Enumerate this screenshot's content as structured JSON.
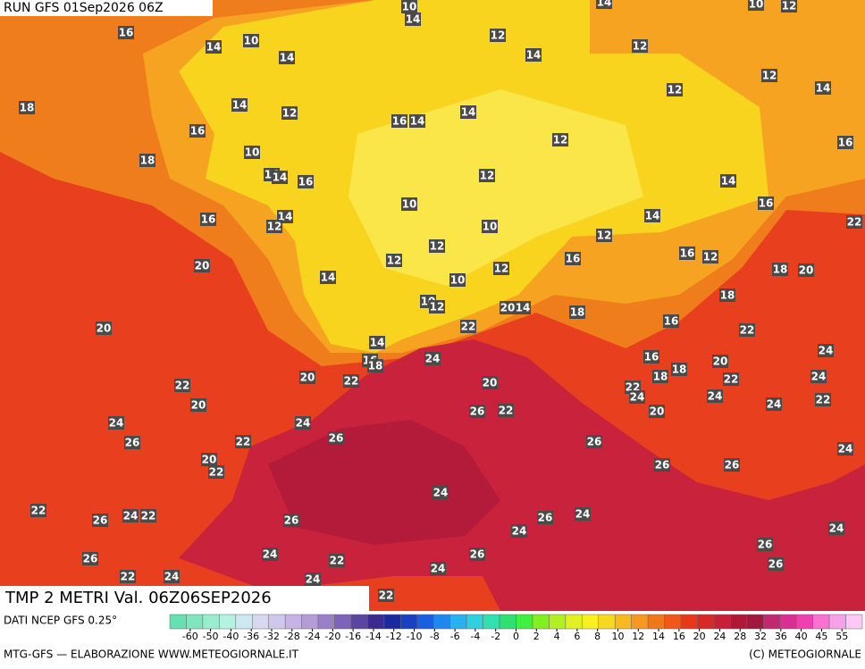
{
  "header": {
    "run": "RUN GFS 01Sep2026 06Z",
    "title": "TMP 2 METRI Val. 06Z06SEP2026"
  },
  "footer": {
    "source": "DATI NCEP GFS 0.25°",
    "credit": "MTG-GFS — ELABORAZIONE WWW.METEOGIORNALE.IT",
    "copyright": "(C) METEOGIORNALE"
  },
  "colorbar": {
    "ticks": [
      -60,
      -50,
      -40,
      -36,
      -32,
      -28,
      -24,
      -20,
      -16,
      -14,
      -12,
      -10,
      -8,
      -6,
      -4,
      -2,
      0,
      2,
      4,
      6,
      8,
      10,
      12,
      14,
      16,
      20,
      24,
      28,
      32,
      36,
      40,
      45,
      55
    ]
  },
  "map_labels": [
    10,
    14,
    14,
    10,
    12,
    16,
    14,
    10,
    12,
    14,
    12,
    14,
    12,
    12,
    14,
    18,
    14,
    12,
    16,
    14,
    14,
    16,
    12,
    16,
    18,
    10,
    14,
    14,
    16,
    12,
    14,
    16,
    10,
    14,
    16,
    12,
    10,
    14,
    22,
    12,
    12,
    16,
    12,
    12,
    20,
    16,
    12,
    18,
    20,
    14,
    10,
    18,
    10,
    12,
    20,
    14,
    18,
    16,
    20,
    22,
    22,
    14,
    24,
    16,
    18,
    24,
    16,
    18,
    20,
    22,
    20,
    22,
    20,
    18,
    22,
    24,
    22,
    24,
    24,
    22,
    20,
    24,
    26,
    22,
    20,
    24,
    24,
    26,
    22,
    26,
    26,
    20,
    22,
    26,
    26,
    24,
    24,
    22,
    26,
    24,
    22,
    26,
    26,
    24,
    24,
    24,
    26,
    24,
    26,
    22,
    26,
    24,
    26,
    22,
    24,
    24,
    22
  ]
}
